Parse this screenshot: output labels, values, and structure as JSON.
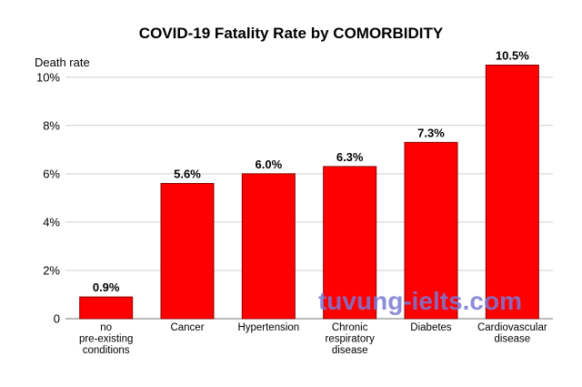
{
  "chart_data": {
    "type": "bar",
    "title": "COVID-19 Fatality Rate by COMORBIDITY",
    "ylabel": "Death rate",
    "xlabel": "",
    "ylim": [
      0,
      10.5
    ],
    "yticks": [
      0,
      2,
      4,
      6,
      8,
      10
    ],
    "ytick_labels": [
      "0",
      "2%",
      "4%",
      "6%",
      "8%",
      "10%"
    ],
    "categories": [
      [
        "no",
        "pre-existing",
        "conditions"
      ],
      [
        "Cancer"
      ],
      [
        "Hypertension"
      ],
      [
        "Chronic",
        "respiratory",
        "disease"
      ],
      [
        "Diabetes"
      ],
      [
        "Cardiovascular",
        "disease"
      ]
    ],
    "values": [
      0.9,
      5.6,
      6.0,
      6.3,
      7.3,
      10.5
    ],
    "data_labels": [
      "0.9%",
      "5.6%",
      "6.0%",
      "6.3%",
      "7.3%",
      "10.5%"
    ],
    "grid": true,
    "bar_color": "#ff0000",
    "bar_edge_color": "#8b0000"
  },
  "watermark": "tuvung-ielts.com"
}
